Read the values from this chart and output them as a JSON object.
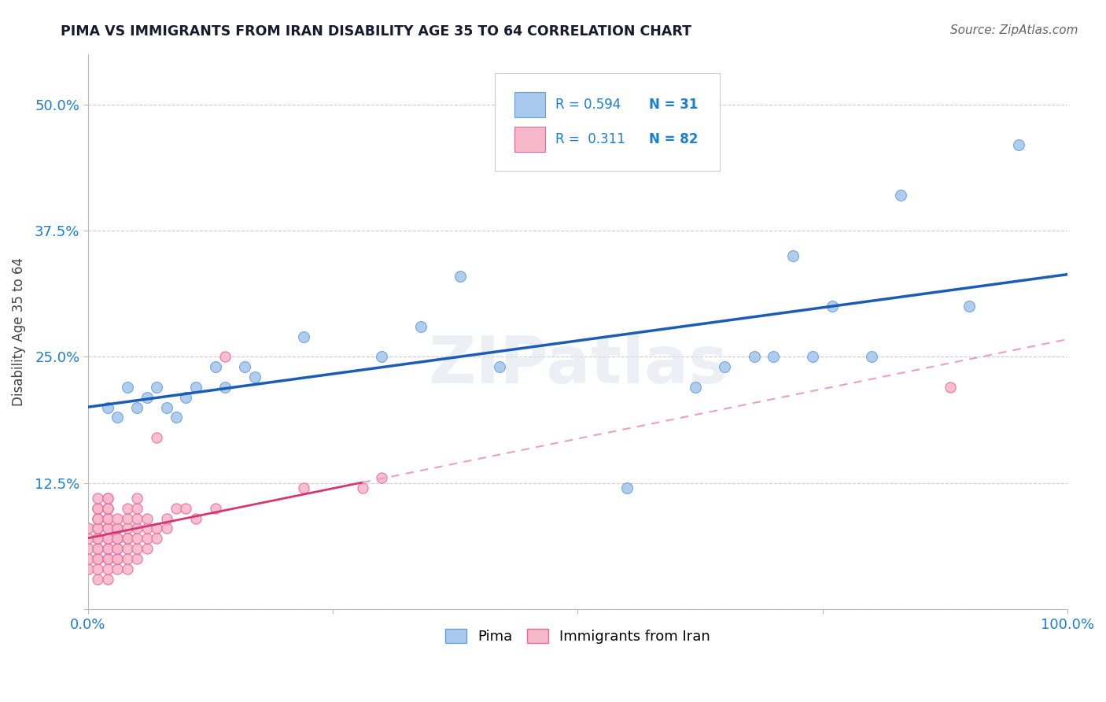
{
  "title": "PIMA VS IMMIGRANTS FROM IRAN DISABILITY AGE 35 TO 64 CORRELATION CHART",
  "source": "Source: ZipAtlas.com",
  "ylabel_label": "Disability Age 35 to 64",
  "xlim": [
    0.0,
    1.0
  ],
  "ylim": [
    0.0,
    0.55
  ],
  "xticks": [
    0.0,
    0.25,
    0.5,
    0.75,
    1.0
  ],
  "xtick_labels": [
    "0.0%",
    "",
    "",
    "",
    "100.0%"
  ],
  "yticks": [
    0.0,
    0.125,
    0.25,
    0.375,
    0.5
  ],
  "ytick_labels": [
    "",
    "12.5%",
    "25.0%",
    "37.5%",
    "50.0%"
  ],
  "background_color": "#ffffff",
  "pima_color": "#A8C8EE",
  "pima_edge_color": "#6AA0D8",
  "iran_color": "#F8B8CC",
  "iran_edge_color": "#E86898",
  "pima_R": 0.594,
  "pima_N": 31,
  "iran_R": 0.311,
  "iran_N": 82,
  "pima_line_color": "#1B5DB5",
  "iran_line_color": "#D43870",
  "iran_dash_color": "#EAA0C0",
  "grid_color": "#CCCCCC",
  "title_color": "#1a1a2e",
  "legend_color": "#1A7FD4",
  "pima_x": [
    0.02,
    0.03,
    0.04,
    0.05,
    0.06,
    0.07,
    0.08,
    0.09,
    0.1,
    0.11,
    0.13,
    0.14,
    0.16,
    0.17,
    0.22,
    0.3,
    0.34,
    0.38,
    0.42,
    0.55,
    0.62,
    0.65,
    0.68,
    0.7,
    0.72,
    0.74,
    0.76,
    0.8,
    0.83,
    0.9,
    0.95
  ],
  "pima_y": [
    0.2,
    0.19,
    0.22,
    0.2,
    0.21,
    0.22,
    0.2,
    0.19,
    0.21,
    0.22,
    0.24,
    0.22,
    0.24,
    0.23,
    0.27,
    0.25,
    0.28,
    0.33,
    0.24,
    0.12,
    0.22,
    0.24,
    0.25,
    0.25,
    0.35,
    0.25,
    0.3,
    0.25,
    0.41,
    0.3,
    0.46
  ],
  "iran_x": [
    0.0,
    0.0,
    0.0,
    0.0,
    0.0,
    0.01,
    0.01,
    0.01,
    0.01,
    0.01,
    0.01,
    0.01,
    0.01,
    0.01,
    0.01,
    0.01,
    0.01,
    0.01,
    0.01,
    0.01,
    0.01,
    0.01,
    0.02,
    0.02,
    0.02,
    0.02,
    0.02,
    0.02,
    0.02,
    0.02,
    0.02,
    0.02,
    0.02,
    0.02,
    0.02,
    0.02,
    0.02,
    0.02,
    0.02,
    0.03,
    0.03,
    0.03,
    0.03,
    0.03,
    0.03,
    0.03,
    0.03,
    0.03,
    0.03,
    0.04,
    0.04,
    0.04,
    0.04,
    0.04,
    0.04,
    0.04,
    0.04,
    0.05,
    0.05,
    0.05,
    0.05,
    0.05,
    0.05,
    0.05,
    0.06,
    0.06,
    0.06,
    0.06,
    0.07,
    0.07,
    0.07,
    0.08,
    0.08,
    0.09,
    0.1,
    0.11,
    0.13,
    0.14,
    0.22,
    0.28,
    0.3,
    0.88
  ],
  "iran_y": [
    0.04,
    0.05,
    0.06,
    0.07,
    0.08,
    0.03,
    0.04,
    0.05,
    0.05,
    0.06,
    0.06,
    0.07,
    0.07,
    0.08,
    0.08,
    0.08,
    0.09,
    0.09,
    0.09,
    0.1,
    0.1,
    0.11,
    0.03,
    0.04,
    0.05,
    0.05,
    0.06,
    0.06,
    0.07,
    0.07,
    0.08,
    0.08,
    0.09,
    0.09,
    0.1,
    0.1,
    0.1,
    0.11,
    0.11,
    0.04,
    0.05,
    0.05,
    0.06,
    0.06,
    0.07,
    0.07,
    0.08,
    0.08,
    0.09,
    0.04,
    0.05,
    0.06,
    0.07,
    0.07,
    0.08,
    0.09,
    0.1,
    0.05,
    0.06,
    0.07,
    0.08,
    0.09,
    0.1,
    0.11,
    0.06,
    0.07,
    0.08,
    0.09,
    0.07,
    0.08,
    0.17,
    0.08,
    0.09,
    0.1,
    0.1,
    0.09,
    0.1,
    0.25,
    0.12,
    0.12,
    0.13,
    0.22
  ]
}
